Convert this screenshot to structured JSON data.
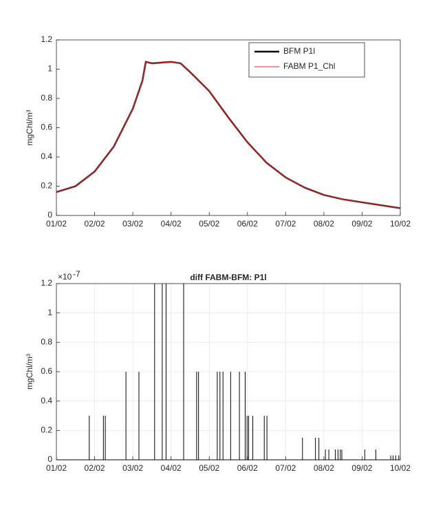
{
  "chart_data": [
    {
      "type": "line",
      "ylabel": "mgChl/m³",
      "x": [
        0,
        0.5,
        1,
        1.5,
        2,
        2.25,
        2.34,
        2.5,
        3,
        3.25,
        3.5,
        4,
        4.5,
        5,
        5.5,
        6,
        6.5,
        7,
        7.5,
        8,
        8.5,
        9
      ],
      "series": [
        {
          "name": "BFM P1l",
          "color": "#000000",
          "values": [
            0.16,
            0.2,
            0.3,
            0.47,
            0.73,
            0.92,
            1.05,
            1.04,
            1.05,
            1.04,
            0.98,
            0.85,
            0.67,
            0.5,
            0.36,
            0.26,
            0.19,
            0.14,
            0.11,
            0.09,
            0.07,
            0.05
          ]
        },
        {
          "name": "FABM P1_Chl",
          "color": "#d62728",
          "values": [
            0.16,
            0.2,
            0.3,
            0.47,
            0.73,
            0.92,
            1.05,
            1.04,
            1.05,
            1.04,
            0.98,
            0.85,
            0.67,
            0.5,
            0.36,
            0.26,
            0.19,
            0.14,
            0.11,
            0.09,
            0.07,
            0.05
          ]
        }
      ],
      "xlim": [
        0,
        9
      ],
      "xticks": [
        {
          "value": 0,
          "label": "01/02"
        },
        {
          "value": 1,
          "label": "02/02"
        },
        {
          "value": 2,
          "label": "03/02"
        },
        {
          "value": 3,
          "label": "04/02"
        },
        {
          "value": 4,
          "label": "05/02"
        },
        {
          "value": 5,
          "label": "06/02"
        },
        {
          "value": 6,
          "label": "07/02"
        },
        {
          "value": 7,
          "label": "08/02"
        },
        {
          "value": 8,
          "label": "09/02"
        },
        {
          "value": 9,
          "label": "10/02"
        }
      ],
      "ylim": [
        0,
        1.2
      ],
      "yticks": [
        0,
        0.2,
        0.4,
        0.6,
        0.8,
        1,
        1.2
      ],
      "grid": false,
      "legend": "northeast"
    },
    {
      "type": "stem",
      "title": "diff FABM-BFM: P1l",
      "ylabel": "mgChl/m³",
      "y_exponent_base": "×10",
      "y_exponent": "-7",
      "x": [
        0.86,
        1.23,
        1.28,
        1.82,
        2.16,
        2.57,
        2.77,
        2.87,
        3.33,
        3.67,
        3.72,
        4.21,
        4.28,
        4.36,
        4.56,
        4.79,
        4.94,
        4.99,
        5.03,
        5.14,
        5.44,
        5.51,
        6.44,
        6.78,
        6.87,
        7.04,
        7.13,
        7.3,
        7.37,
        7.43,
        7.47,
        8.07,
        8.36,
        8.75,
        8.81,
        8.88,
        8.96
      ],
      "values": [
        3e-08,
        3e-08,
        3e-08,
        6e-08,
        6e-08,
        1.2e-07,
        1.2e-07,
        1.2e-07,
        1.2e-07,
        6e-08,
        6e-08,
        6e-08,
        6e-08,
        6e-08,
        6e-08,
        6e-08,
        6e-08,
        3e-08,
        3e-08,
        3e-08,
        3e-08,
        3e-08,
        1.5e-08,
        1.5e-08,
        1.5e-08,
        7e-09,
        7e-09,
        7e-09,
        7e-09,
        7e-09,
        7e-09,
        7e-09,
        7e-09,
        3e-09,
        3e-09,
        3e-09,
        3e-09
      ],
      "color": "#000000",
      "xlim": [
        0,
        9
      ],
      "xticks": [
        {
          "value": 0,
          "label": "01/02"
        },
        {
          "value": 1,
          "label": "02/02"
        },
        {
          "value": 2,
          "label": "03/02"
        },
        {
          "value": 3,
          "label": "04/02"
        },
        {
          "value": 4,
          "label": "05/02"
        },
        {
          "value": 5,
          "label": "06/02"
        },
        {
          "value": 6,
          "label": "07/02"
        },
        {
          "value": 7,
          "label": "08/02"
        },
        {
          "value": 8,
          "label": "09/02"
        },
        {
          "value": 9,
          "label": "10/02"
        }
      ],
      "ylim": [
        0,
        1.2e-07
      ],
      "yticks": [
        {
          "value": 0,
          "label": "0"
        },
        {
          "value": 2e-08,
          "label": "0.2"
        },
        {
          "value": 4e-08,
          "label": "0.4"
        },
        {
          "value": 6e-08,
          "label": "0.6"
        },
        {
          "value": 8e-08,
          "label": "0.8"
        },
        {
          "value": 1e-07,
          "label": "1"
        },
        {
          "value": 1.2e-07,
          "label": "1.2"
        }
      ],
      "grid": true
    }
  ]
}
